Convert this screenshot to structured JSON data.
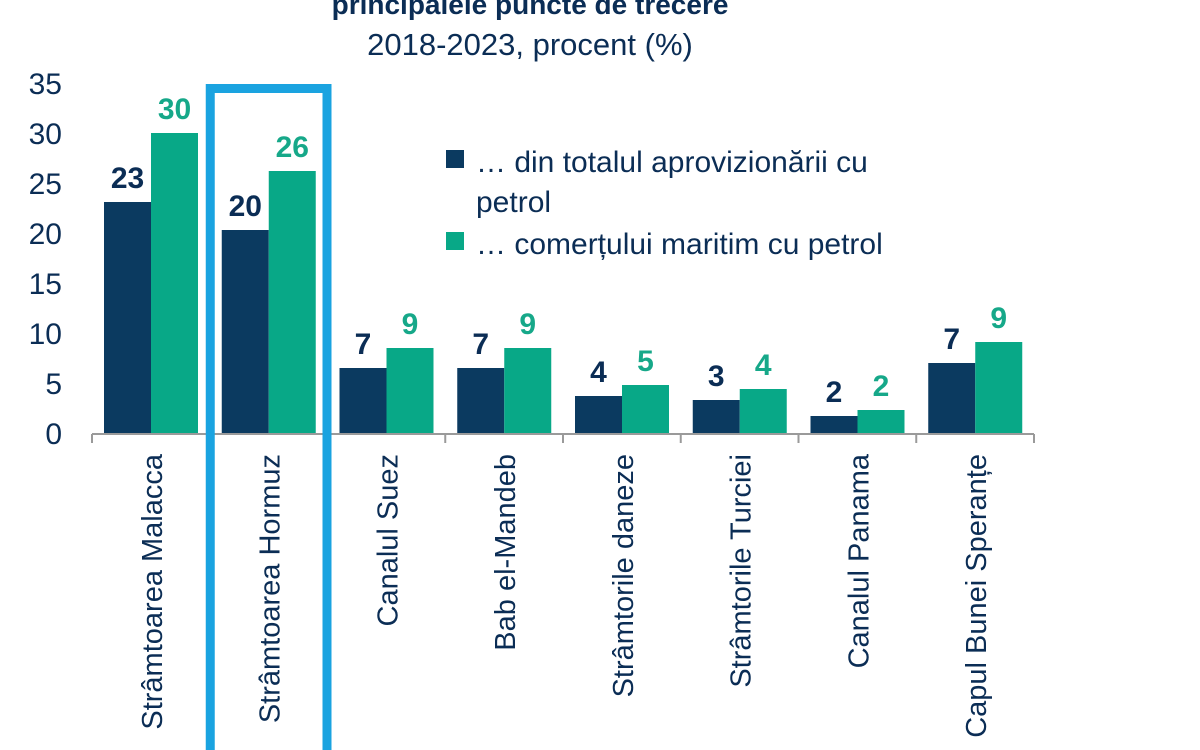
{
  "chart_data": {
    "type": "bar",
    "title": "principalele puncte de trecere",
    "subtitle": "2018-2023, procent (%)",
    "categories": [
      "Strâmtoarea Malacca",
      "Strâmtoarea Hormuz",
      "Canalul Suez",
      "Bab el-Mandeb",
      "Strâmtorile daneze",
      "Strâmtorile Turciei",
      "Canalul Panama",
      "Capul Bunei Speranțe"
    ],
    "series": [
      {
        "name_lines": [
          "… din totalul aprovizionării cu",
          "petrol"
        ],
        "color": "#0b3a60",
        "label_color": "#0b2d55",
        "values": [
          23.2,
          20.4,
          6.6,
          6.6,
          3.8,
          3.4,
          1.8,
          7.1
        ],
        "labels": [
          "23",
          "20",
          "7",
          "7",
          "4",
          "3",
          "2",
          "7"
        ]
      },
      {
        "name_lines": [
          "… comerțului maritim cu petrol"
        ],
        "color": "#08a887",
        "label_color": "#16a889",
        "values": [
          30.1,
          26.3,
          8.6,
          8.6,
          4.9,
          4.5,
          2.4,
          9.2
        ],
        "labels": [
          "30",
          "26",
          "9",
          "9",
          "5",
          "4",
          "2",
          "9"
        ]
      }
    ],
    "ylim": [
      0,
      35
    ],
    "yticks": [
      0,
      5,
      10,
      15,
      20,
      25,
      30,
      35
    ],
    "grid": false,
    "legend_position": "top-right",
    "highlight_category": "Strâmtoarea Hormuz",
    "highlight_color": "#1aa3e0"
  }
}
